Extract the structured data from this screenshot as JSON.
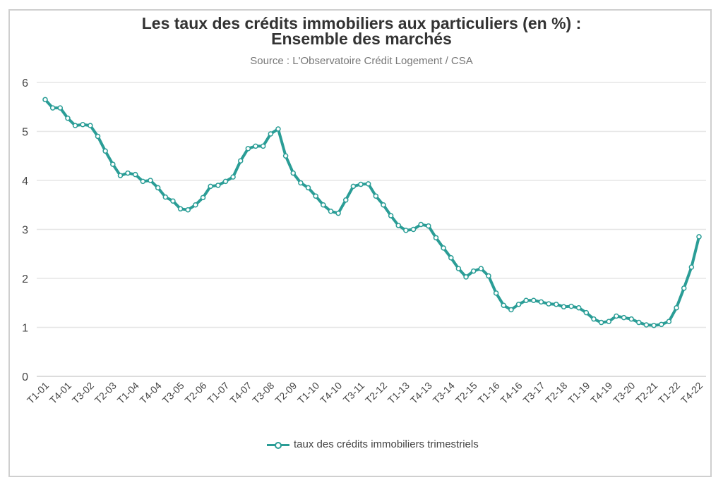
{
  "chart_data": {
    "type": "line",
    "title_line1": "Les taux des crédits immobiliers aux particuliers (en %) :",
    "title_line2": "Ensemble des marchés",
    "subtitle": "Source : L'Observatoire Crédit Logement / CSA",
    "xlabel": "",
    "ylabel": "",
    "ylim": [
      0,
      6
    ],
    "yticks": [
      "0",
      "1",
      "2",
      "3",
      "4",
      "5",
      "6"
    ],
    "grid": true,
    "legend_position": "bottom",
    "xtick_every": 3,
    "xtick_labels": [
      "T1-01",
      "T4-01",
      "T3-02",
      "T2-03",
      "T1-04",
      "T4-04",
      "T3-05",
      "T2-06",
      "T1-07",
      "T4-07",
      "T3-08",
      "T2-09",
      "T1-10",
      "T4-10",
      "T3-11",
      "T2-12",
      "T1-13",
      "T4-13",
      "T3-14",
      "T2-15",
      "T1-16",
      "T4-16",
      "T3-17",
      "T2-18",
      "T1-19",
      "T4-19",
      "T3-20",
      "T2-21",
      "T1-22",
      "T4-22"
    ],
    "series": [
      {
        "name": "taux des crédits immobiliers trimestriels",
        "color": "#2a9d96",
        "values": [
          5.65,
          5.48,
          5.48,
          5.27,
          5.12,
          5.14,
          5.12,
          4.9,
          4.6,
          4.33,
          4.1,
          4.15,
          4.12,
          3.98,
          4.0,
          3.85,
          3.66,
          3.58,
          3.42,
          3.4,
          3.5,
          3.65,
          3.88,
          3.9,
          3.98,
          4.07,
          4.4,
          4.65,
          4.7,
          4.7,
          4.95,
          5.05,
          4.5,
          4.15,
          3.95,
          3.85,
          3.68,
          3.5,
          3.37,
          3.33,
          3.6,
          3.88,
          3.92,
          3.93,
          3.68,
          3.5,
          3.28,
          3.08,
          2.98,
          3.0,
          3.1,
          3.07,
          2.83,
          2.62,
          2.42,
          2.2,
          2.03,
          2.15,
          2.2,
          2.05,
          1.7,
          1.45,
          1.36,
          1.47,
          1.55,
          1.55,
          1.52,
          1.48,
          1.47,
          1.42,
          1.43,
          1.4,
          1.3,
          1.17,
          1.1,
          1.12,
          1.23,
          1.2,
          1.17,
          1.1,
          1.05,
          1.04,
          1.06,
          1.12,
          1.4,
          1.8,
          2.23,
          2.85
        ]
      }
    ]
  }
}
